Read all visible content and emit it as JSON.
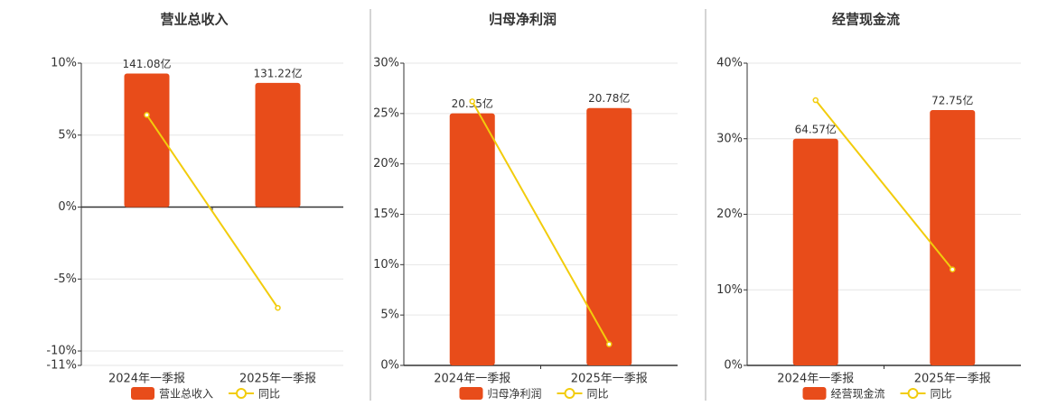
{
  "chart_data": [
    {
      "type": "bar",
      "title": "营业总收入",
      "categories": [
        "2024年一季报",
        "2025年一季报"
      ],
      "series": [
        {
          "name": "营业总收入",
          "type": "bar",
          "axis": "y2",
          "color": "#e84c1a",
          "values": [
            141.08,
            131.22
          ],
          "value_labels": [
            "141.08亿",
            "131.22亿"
          ]
        },
        {
          "name": "同比",
          "type": "line",
          "color": "#f2cc0c",
          "values": [
            6.4,
            -7.0
          ]
        }
      ],
      "ylim": [
        -11,
        10
      ],
      "yticks": [
        {
          "value": 10,
          "label": "10%"
        },
        {
          "value": 5,
          "label": "5%"
        },
        {
          "value": 0,
          "label": "0%"
        },
        {
          "value": -5,
          "label": "-5%"
        },
        {
          "value": -10,
          "label": "-10%"
        },
        {
          "value": -11,
          "label": "-11%"
        }
      ],
      "y2lim": [
        -167,
        152
      ],
      "grid": true
    },
    {
      "type": "bar",
      "title": "归母净利润",
      "categories": [
        "2024年一季报",
        "2025年一季报"
      ],
      "series": [
        {
          "name": "归母净利润",
          "type": "bar",
          "axis": "y2",
          "color": "#e84c1a",
          "values": [
            20.35,
            20.78
          ],
          "value_labels": [
            "20.35亿",
            "20.78亿"
          ]
        },
        {
          "name": "同比",
          "type": "line",
          "color": "#f2cc0c",
          "values": [
            26.2,
            2.1
          ]
        }
      ],
      "ylim": [
        0,
        30
      ],
      "yticks": [
        {
          "value": 30,
          "label": "30%"
        },
        {
          "value": 25,
          "label": "25%"
        },
        {
          "value": 20,
          "label": "20%"
        },
        {
          "value": 15,
          "label": "15%"
        },
        {
          "value": 10,
          "label": "10%"
        },
        {
          "value": 5,
          "label": "5%"
        },
        {
          "value": 0,
          "label": "0%"
        }
      ],
      "y2lim": [
        0,
        24.4
      ],
      "grid": true
    },
    {
      "type": "bar",
      "title": "经营现金流",
      "categories": [
        "2024年一季报",
        "2025年一季报"
      ],
      "series": [
        {
          "name": "经营现金流",
          "type": "bar",
          "axis": "y2",
          "color": "#e84c1a",
          "values": [
            64.57,
            72.75
          ],
          "value_labels": [
            "64.57亿",
            "72.75亿"
          ]
        },
        {
          "name": "同比",
          "type": "line",
          "color": "#f2cc0c",
          "values": [
            35.1,
            12.7
          ]
        }
      ],
      "ylim": [
        0,
        40
      ],
      "yticks": [
        {
          "value": 40,
          "label": "40%"
        },
        {
          "value": 30,
          "label": "30%"
        },
        {
          "value": 20,
          "label": "20%"
        },
        {
          "value": 10,
          "label": "10%"
        },
        {
          "value": 0,
          "label": "0%"
        }
      ],
      "y2lim": [
        0,
        86.1
      ],
      "grid": true
    }
  ]
}
